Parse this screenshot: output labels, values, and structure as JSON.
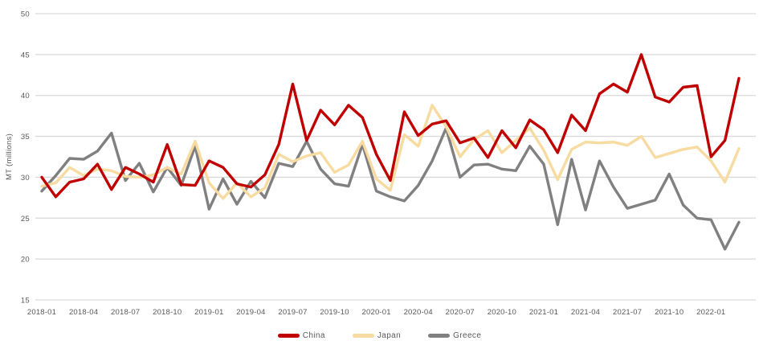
{
  "chart_data": {
    "type": "line",
    "title": "",
    "ylabel": "MT (millions)",
    "xlabel": "",
    "ylim": [
      15,
      50
    ],
    "yticks": [
      15,
      20,
      25,
      30,
      35,
      40,
      45,
      50
    ],
    "x_tick_step": 3,
    "grid": "horizontal",
    "legend_position": "bottom-center",
    "colors": {
      "background": "#FFFFFF",
      "gridline": "#D9D9D9",
      "axis_text": "#595959"
    },
    "categories": [
      "2018-01",
      "2018-02",
      "2018-03",
      "2018-04",
      "2018-05",
      "2018-06",
      "2018-07",
      "2018-08",
      "2018-09",
      "2018-10",
      "2018-11",
      "2018-12",
      "2019-01",
      "2019-02",
      "2019-03",
      "2019-04",
      "2019-05",
      "2019-06",
      "2019-07",
      "2019-08",
      "2019-09",
      "2019-10",
      "2019-11",
      "2019-12",
      "2020-01",
      "2020-02",
      "2020-03",
      "2020-04",
      "2020-05",
      "2020-06",
      "2020-07",
      "2020-08",
      "2020-09",
      "2020-10",
      "2020-11",
      "2020-12",
      "2021-01",
      "2021-02",
      "2021-03",
      "2021-04",
      "2021-05",
      "2021-06",
      "2021-07",
      "2021-08",
      "2021-09",
      "2021-10",
      "2021-11",
      "2021-12",
      "2022-01",
      "2022-02",
      "2022-03"
    ],
    "series": [
      {
        "name": "China",
        "color": "#C00000",
        "values": [
          30.0,
          27.6,
          29.4,
          29.8,
          31.6,
          28.5,
          31.2,
          30.4,
          29.4,
          34.0,
          29.1,
          29.0,
          32.0,
          31.2,
          29.2,
          28.8,
          30.3,
          34.0,
          41.4,
          34.5,
          38.2,
          36.4,
          38.8,
          37.3,
          32.8,
          29.6,
          38.0,
          35.1,
          36.5,
          36.9,
          34.2,
          34.8,
          32.4,
          35.7,
          33.6,
          37.0,
          35.8,
          33.0,
          37.6,
          35.7,
          40.2,
          41.4,
          40.4,
          45.0,
          39.8,
          39.2,
          41.0,
          41.2,
          32.5,
          34.5,
          42.1
        ]
      },
      {
        "name": "Japan",
        "color": "#F7DBA1",
        "values": [
          28.9,
          29.3,
          31.2,
          30.2,
          31.0,
          30.8,
          30.1,
          30.0,
          30.3,
          31.2,
          30.4,
          34.4,
          29.3,
          27.4,
          29.3,
          27.6,
          28.7,
          32.8,
          31.9,
          32.6,
          33.0,
          30.6,
          31.5,
          34.4,
          29.8,
          28.4,
          35.2,
          33.8,
          38.8,
          36.2,
          32.5,
          34.6,
          35.7,
          33.0,
          34.5,
          36.0,
          33.3,
          29.7,
          33.4,
          34.3,
          34.2,
          34.3,
          33.9,
          35.0,
          32.4,
          32.9,
          33.4,
          33.7,
          32.0,
          29.4,
          33.5
        ]
      },
      {
        "name": "Greece",
        "color": "#808080",
        "values": [
          28.3,
          30.2,
          32.3,
          32.2,
          33.2,
          35.4,
          29.6,
          31.7,
          28.2,
          31.2,
          29.0,
          33.8,
          26.1,
          29.8,
          26.7,
          29.5,
          27.5,
          31.7,
          31.3,
          34.4,
          31.0,
          29.2,
          28.9,
          34.0,
          28.3,
          27.6,
          27.1,
          29.0,
          32.0,
          36.0,
          30.0,
          31.5,
          31.6,
          31.0,
          30.8,
          33.8,
          31.6,
          24.2,
          32.2,
          26.0,
          32.0,
          28.8,
          26.2,
          26.7,
          27.2,
          30.4,
          26.6,
          25.0,
          24.8,
          21.2,
          24.5
        ]
      }
    ]
  }
}
